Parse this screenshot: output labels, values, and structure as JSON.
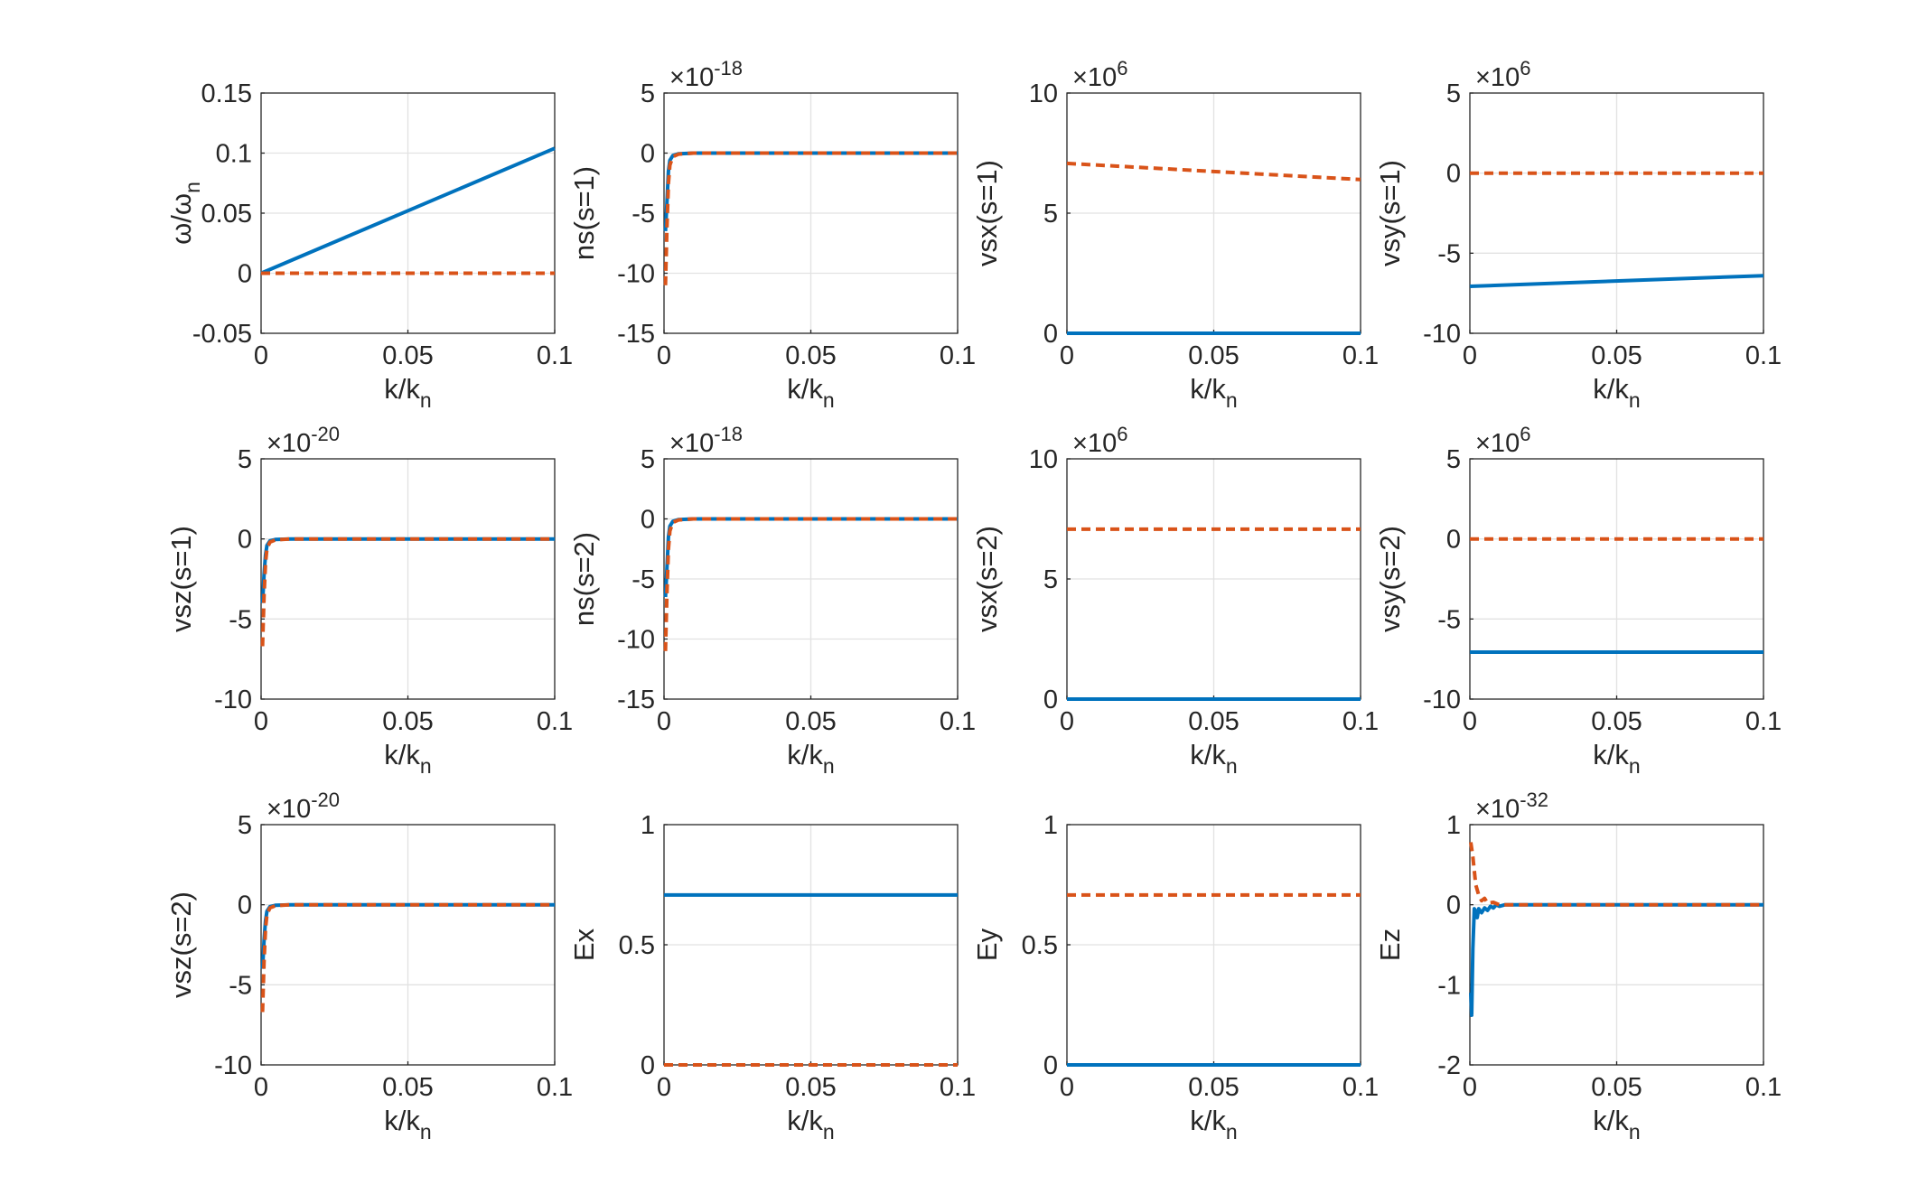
{
  "colors": {
    "series1": "#0072BD",
    "series2": "#D95319",
    "axis": "#262626",
    "grid": "#e2e2e2"
  },
  "chart_data": [
    {
      "type": "line",
      "ylabel": "ω/ωn",
      "ylabel_html": [
        "ω/ω",
        "n"
      ],
      "xlabel": "k/kn",
      "xlim": [
        0,
        0.1
      ],
      "ylim": [
        -0.05,
        0.15
      ],
      "xticks": [
        "0",
        "0.05",
        "0.1"
      ],
      "yticks": [
        "-0.05",
        "0",
        "0.05",
        "0.1",
        "0.15"
      ],
      "exponent": "",
      "series": [
        {
          "style": "solid",
          "x": [
            0,
            0.1
          ],
          "y": [
            0,
            0.104
          ]
        },
        {
          "style": "dashed",
          "x": [
            0,
            0.1
          ],
          "y": [
            0,
            0
          ]
        }
      ]
    },
    {
      "type": "line",
      "ylabel": "ns(s=1)",
      "xlabel": "k/kn",
      "xlim": [
        0,
        0.1
      ],
      "ylim": [
        -15,
        5
      ],
      "xticks": [
        "0",
        "0.05",
        "0.1"
      ],
      "yticks": [
        "-15",
        "-10",
        "-5",
        "0",
        "5"
      ],
      "exponent": "-18",
      "series": [
        {
          "style": "solid",
          "x": [
            0.0005,
            0.001,
            0.0015,
            0.002,
            0.003,
            0.005,
            0.01,
            0.1
          ],
          "y": [
            -6.5,
            -4,
            -1.5,
            -0.6,
            -0.2,
            -0.05,
            0,
            0
          ]
        },
        {
          "style": "dashed",
          "x": [
            0.0005,
            0.001,
            0.0015,
            0.002,
            0.003,
            0.005,
            0.01,
            0.1
          ],
          "y": [
            -11,
            -6,
            -2.5,
            -1,
            -0.3,
            -0.08,
            0,
            0
          ]
        }
      ]
    },
    {
      "type": "line",
      "ylabel": "vsx(s=1)",
      "xlabel": "k/kn",
      "xlim": [
        0,
        0.1
      ],
      "ylim": [
        0,
        10
      ],
      "xticks": [
        "0",
        "0.05",
        "0.1"
      ],
      "yticks": [
        "0",
        "5",
        "10"
      ],
      "exponent": "6",
      "series": [
        {
          "style": "solid",
          "x": [
            0,
            0.1
          ],
          "y": [
            0,
            0
          ]
        },
        {
          "style": "dashed",
          "x": [
            0,
            0.1
          ],
          "y": [
            7.07,
            6.4
          ]
        }
      ]
    },
    {
      "type": "line",
      "ylabel": "vsy(s=1)",
      "xlabel": "k/kn",
      "xlim": [
        0,
        0.1
      ],
      "ylim": [
        -10,
        5
      ],
      "xticks": [
        "0",
        "0.05",
        "0.1"
      ],
      "yticks": [
        "-10",
        "-5",
        "0",
        "5"
      ],
      "exponent": "6",
      "series": [
        {
          "style": "solid",
          "x": [
            0,
            0.1
          ],
          "y": [
            -7.07,
            -6.4
          ]
        },
        {
          "style": "dashed",
          "x": [
            0,
            0.1
          ],
          "y": [
            0,
            0
          ]
        }
      ]
    },
    {
      "type": "line",
      "ylabel": "vsz(s=1)",
      "xlabel": "k/kn",
      "xlim": [
        0,
        0.1
      ],
      "ylim": [
        -10,
        5
      ],
      "xticks": [
        "0",
        "0.05",
        "0.1"
      ],
      "yticks": [
        "-10",
        "-5",
        "0",
        "5"
      ],
      "exponent": "-20",
      "series": [
        {
          "style": "solid",
          "x": [
            0.0005,
            0.001,
            0.0015,
            0.002,
            0.003,
            0.005,
            0.01,
            0.1
          ],
          "y": [
            -4,
            -2.2,
            -1,
            -0.4,
            -0.12,
            -0.03,
            0,
            0
          ]
        },
        {
          "style": "dashed",
          "x": [
            0.0005,
            0.001,
            0.0015,
            0.002,
            0.003,
            0.005,
            0.01,
            0.1
          ],
          "y": [
            -6.7,
            -3.5,
            -1.5,
            -0.6,
            -0.2,
            -0.05,
            0,
            0
          ]
        }
      ]
    },
    {
      "type": "line",
      "ylabel": "ns(s=2)",
      "xlabel": "k/kn",
      "xlim": [
        0,
        0.1
      ],
      "ylim": [
        -15,
        5
      ],
      "xticks": [
        "0",
        "0.05",
        "0.1"
      ],
      "yticks": [
        "-15",
        "-10",
        "-5",
        "0",
        "5"
      ],
      "exponent": "-18",
      "series": [
        {
          "style": "solid",
          "x": [
            0.0005,
            0.001,
            0.0015,
            0.002,
            0.003,
            0.005,
            0.01,
            0.1
          ],
          "y": [
            -6.5,
            -4,
            -1.5,
            -0.6,
            -0.2,
            -0.05,
            0,
            0
          ]
        },
        {
          "style": "dashed",
          "x": [
            0.0005,
            0.001,
            0.0015,
            0.002,
            0.003,
            0.005,
            0.01,
            0.1
          ],
          "y": [
            -11,
            -6,
            -2.5,
            -1,
            -0.3,
            -0.08,
            0,
            0
          ]
        }
      ]
    },
    {
      "type": "line",
      "ylabel": "vsx(s=2)",
      "xlabel": "k/kn",
      "xlim": [
        0,
        0.1
      ],
      "ylim": [
        0,
        10
      ],
      "xticks": [
        "0",
        "0.05",
        "0.1"
      ],
      "yticks": [
        "0",
        "5",
        "10"
      ],
      "exponent": "6",
      "series": [
        {
          "style": "solid",
          "x": [
            0,
            0.1
          ],
          "y": [
            0,
            0
          ]
        },
        {
          "style": "dashed",
          "x": [
            0,
            0.1
          ],
          "y": [
            7.07,
            7.07
          ]
        }
      ]
    },
    {
      "type": "line",
      "ylabel": "vsy(s=2)",
      "xlabel": "k/kn",
      "xlim": [
        0,
        0.1
      ],
      "ylim": [
        -10,
        5
      ],
      "xticks": [
        "0",
        "0.05",
        "0.1"
      ],
      "yticks": [
        "-10",
        "-5",
        "0",
        "5"
      ],
      "exponent": "6",
      "series": [
        {
          "style": "solid",
          "x": [
            0,
            0.1
          ],
          "y": [
            -7.07,
            -7.07
          ]
        },
        {
          "style": "dashed",
          "x": [
            0,
            0.1
          ],
          "y": [
            0,
            0
          ]
        }
      ]
    },
    {
      "type": "line",
      "ylabel": "vsz(s=2)",
      "xlabel": "k/kn",
      "xlim": [
        0,
        0.1
      ],
      "ylim": [
        -10,
        5
      ],
      "xticks": [
        "0",
        "0.05",
        "0.1"
      ],
      "yticks": [
        "-10",
        "-5",
        "0",
        "5"
      ],
      "exponent": "-20",
      "series": [
        {
          "style": "solid",
          "x": [
            0.0005,
            0.001,
            0.0015,
            0.002,
            0.003,
            0.005,
            0.01,
            0.1
          ],
          "y": [
            -4,
            -2.2,
            -1,
            -0.4,
            -0.12,
            -0.03,
            0,
            0
          ]
        },
        {
          "style": "dashed",
          "x": [
            0.0005,
            0.001,
            0.0015,
            0.002,
            0.003,
            0.005,
            0.01,
            0.1
          ],
          "y": [
            -6.7,
            -3.5,
            -1.5,
            -0.6,
            -0.2,
            -0.05,
            0,
            0
          ]
        }
      ]
    },
    {
      "type": "line",
      "ylabel": "Ex",
      "xlabel": "k/kn",
      "xlim": [
        0,
        0.1
      ],
      "ylim": [
        0,
        1
      ],
      "xticks": [
        "0",
        "0.05",
        "0.1"
      ],
      "yticks": [
        "0",
        "0.5",
        "1"
      ],
      "exponent": "",
      "series": [
        {
          "style": "solid",
          "x": [
            0,
            0.1
          ],
          "y": [
            0.707,
            0.707
          ]
        },
        {
          "style": "dashed",
          "x": [
            0,
            0.1
          ],
          "y": [
            0,
            0
          ]
        }
      ]
    },
    {
      "type": "line",
      "ylabel": "Ey",
      "xlabel": "k/kn",
      "xlim": [
        0,
        0.1
      ],
      "ylim": [
        0,
        1
      ],
      "xticks": [
        "0",
        "0.05",
        "0.1"
      ],
      "yticks": [
        "0",
        "0.5",
        "1"
      ],
      "exponent": "",
      "series": [
        {
          "style": "solid",
          "x": [
            0,
            0.1
          ],
          "y": [
            0,
            0
          ]
        },
        {
          "style": "dashed",
          "x": [
            0,
            0.1
          ],
          "y": [
            0.707,
            0.707
          ]
        }
      ]
    },
    {
      "type": "line",
      "ylabel": "Ez",
      "xlabel": "k/kn",
      "xlim": [
        0,
        0.1
      ],
      "ylim": [
        -2,
        1
      ],
      "xticks": [
        "0",
        "0.05",
        "0.1"
      ],
      "yticks": [
        "-2",
        "-1",
        "0",
        "1"
      ],
      "exponent": "-32",
      "series": [
        {
          "style": "solid",
          "x": [
            0.0003,
            0.0006,
            0.001,
            0.0015,
            0.002,
            0.0025,
            0.003,
            0.004,
            0.005,
            0.006,
            0.007,
            0.008,
            0.009,
            0.01,
            0.012,
            0.1
          ],
          "y": [
            -1.1,
            -1.38,
            -0.55,
            -0.05,
            -0.08,
            -0.16,
            -0.05,
            -0.1,
            -0.04,
            -0.07,
            -0.02,
            -0.04,
            0,
            -0.02,
            0,
            0
          ]
        },
        {
          "style": "dashed",
          "x": [
            0.0003,
            0.001,
            0.002,
            0.003,
            0.004,
            0.005,
            0.006,
            0.008,
            0.01,
            0.1
          ],
          "y": [
            0.78,
            0.6,
            0.25,
            0.12,
            0.05,
            0.08,
            0.02,
            0.03,
            0,
            0
          ]
        }
      ]
    }
  ]
}
